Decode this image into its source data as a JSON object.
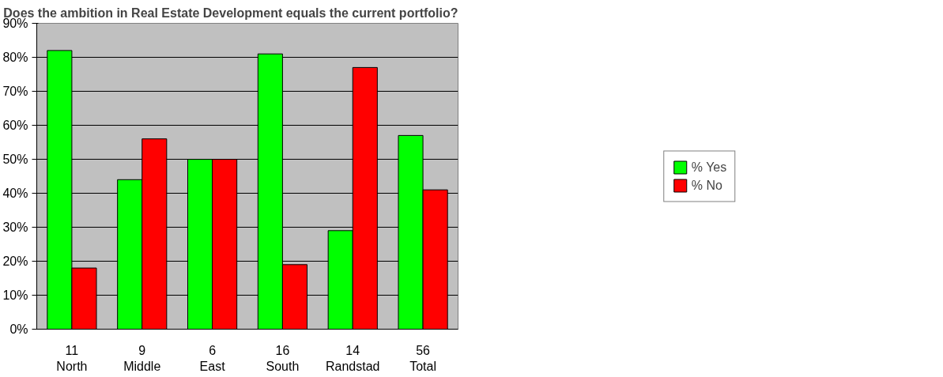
{
  "chart_data": {
    "type": "bar",
    "title": "Does the ambition in Real Estate Development equals the current portfolio?",
    "categories": [
      "11\nNorth",
      "9\nMiddle",
      "6\nEast",
      "16\nSouth",
      "14\nRandstad",
      "56\nTotal"
    ],
    "series": [
      {
        "name": "% Yes",
        "color": "#00ff00",
        "values": [
          82,
          44,
          50,
          81,
          29,
          57
        ]
      },
      {
        "name": "% No",
        "color": "#ff0000",
        "values": [
          18,
          56,
          50,
          19,
          77,
          41
        ]
      }
    ],
    "ylim": [
      0,
      90
    ],
    "yticks": [
      {
        "value": 0,
        "label": "0%"
      },
      {
        "value": 10,
        "label": "10%"
      },
      {
        "value": 20,
        "label": "20%"
      },
      {
        "value": 30,
        "label": "30%"
      },
      {
        "value": 40,
        "label": "40%"
      },
      {
        "value": 50,
        "label": "50%"
      },
      {
        "value": 60,
        "label": "60%"
      },
      {
        "value": 70,
        "label": "70%"
      },
      {
        "value": 80,
        "label": "80%"
      },
      {
        "value": 90,
        "label": "90%"
      }
    ],
    "grid": "y",
    "legend": "right"
  }
}
